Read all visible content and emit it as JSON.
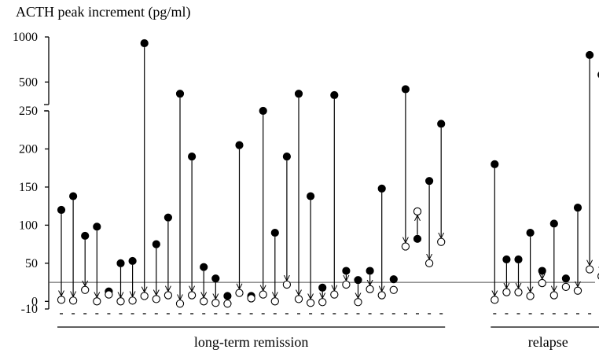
{
  "chart_data": {
    "type": "scatter",
    "title": "ACTH peak increment (pg/ml)",
    "y_ticks_lower": [
      -10,
      0,
      50,
      100,
      150,
      200,
      250
    ],
    "y_ticks_upper": [
      500,
      1000
    ],
    "y_tick_labels": [
      "-10",
      "0",
      "50",
      "100",
      "150",
      "200",
      "250",
      "500",
      "1000"
    ],
    "ylim_lower": [
      -10,
      250
    ],
    "ylim_upper": [
      250,
      1000
    ],
    "y_axis_break": 250,
    "reference_line": 25,
    "legend": "none",
    "grid": false,
    "groups": [
      {
        "label": "long-term remission",
        "start_index": 0,
        "end_index": 32
      },
      {
        "label": "relapse",
        "start_index": 33,
        "end_index": 42
      }
    ],
    "subjects": [
      {
        "before": 120,
        "after": 2
      },
      {
        "before": 138,
        "after": 1
      },
      {
        "before": 86,
        "after": 15
      },
      {
        "before": 98,
        "after": 0
      },
      {
        "before": 13,
        "after": 9
      },
      {
        "before": 50,
        "after": 0
      },
      {
        "before": 53,
        "after": 1
      },
      {
        "before": 930,
        "after": 7
      },
      {
        "before": 75,
        "after": 3
      },
      {
        "before": 110,
        "after": 8
      },
      {
        "before": 370,
        "after": -3
      },
      {
        "before": 190,
        "after": 8
      },
      {
        "before": 45,
        "after": 0
      },
      {
        "before": 30,
        "after": -2
      },
      {
        "before": 7,
        "after": -3
      },
      {
        "before": 205,
        "after": 11
      },
      {
        "before": 7,
        "after": 4
      },
      {
        "before": 250,
        "after": 9
      },
      {
        "before": 90,
        "after": 0
      },
      {
        "before": 190,
        "after": 22
      },
      {
        "before": 370,
        "after": 3
      },
      {
        "before": 138,
        "after": -2
      },
      {
        "before": 18,
        "after": -1
      },
      {
        "before": 355,
        "after": 9
      },
      {
        "before": 40,
        "after": 22
      },
      {
        "before": 28,
        "after": -1
      },
      {
        "before": 40,
        "after": 16
      },
      {
        "before": 148,
        "after": 8
      },
      {
        "before": 29,
        "after": 15
      },
      {
        "before": 420,
        "after": 72
      },
      {
        "before": 82,
        "after": 118
      },
      {
        "before": 158,
        "after": 50
      },
      {
        "before": 233,
        "after": 78
      },
      {
        "before": 180,
        "after": 2
      },
      {
        "before": 55,
        "after": 12
      },
      {
        "before": 55,
        "after": 12
      },
      {
        "before": 90,
        "after": 7
      },
      {
        "before": 40,
        "after": 24
      },
      {
        "before": 102,
        "after": 8
      },
      {
        "before": 30,
        "after": 19
      },
      {
        "before": 123,
        "after": 14
      },
      {
        "before": 800,
        "after": 42
      },
      {
        "before": 580,
        "after": 33
      }
    ]
  }
}
